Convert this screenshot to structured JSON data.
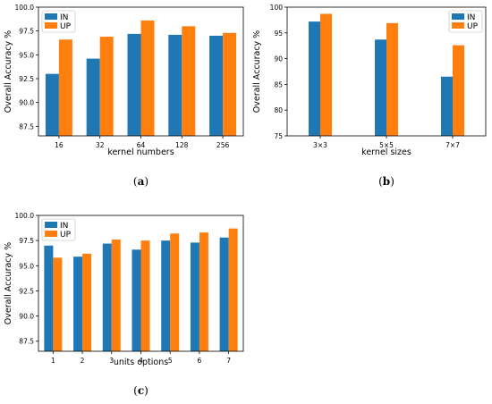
{
  "colors": {
    "series_IN": "#1f77b4",
    "series_UP": "#ff7f0e"
  },
  "chart_data": [
    {
      "id": "a",
      "type": "bar",
      "caption": "a",
      "xlabel": "kernel numbers",
      "ylabel": "Overall Accuracy %",
      "categories": [
        "16",
        "32",
        "64",
        "128",
        "256"
      ],
      "yticks": [
        "87.5",
        "90.0",
        "92.5",
        "95.0",
        "97.5",
        "100.0"
      ],
      "ytick_values": [
        87.5,
        90.0,
        92.5,
        95.0,
        97.5,
        100.0
      ],
      "ylim": [
        86.5,
        100.0
      ],
      "legend": "top-left",
      "series": [
        {
          "name": "IN",
          "values": [
            93.0,
            94.6,
            97.2,
            97.1,
            97.0
          ]
        },
        {
          "name": "UP",
          "values": [
            96.6,
            96.9,
            98.6,
            98.0,
            97.3
          ]
        }
      ]
    },
    {
      "id": "b",
      "type": "bar",
      "caption": "b",
      "xlabel": "kernel sizes",
      "ylabel": "Overall Accuracy %",
      "categories": [
        "3×3",
        "5×5",
        "7×7"
      ],
      "yticks": [
        "75",
        "80",
        "85",
        "90",
        "95",
        "100"
      ],
      "ytick_values": [
        75,
        80,
        85,
        90,
        95,
        100
      ],
      "ylim": [
        75,
        100
      ],
      "legend": "top-right",
      "series": [
        {
          "name": "IN",
          "values": [
            97.2,
            93.7,
            86.5
          ]
        },
        {
          "name": "UP",
          "values": [
            98.7,
            96.9,
            92.6
          ]
        }
      ]
    },
    {
      "id": "c",
      "type": "bar",
      "caption": "c",
      "xlabel": "units options",
      "ylabel": "Overall Accuracy %",
      "categories": [
        "1",
        "2",
        "3",
        "4",
        "5",
        "6",
        "7"
      ],
      "yticks": [
        "87.5",
        "90.0",
        "92.5",
        "95.0",
        "97.5",
        "100.0"
      ],
      "ytick_values": [
        87.5,
        90.0,
        92.5,
        95.0,
        97.5,
        100.0
      ],
      "ylim": [
        86.5,
        100.0
      ],
      "legend": "top-left",
      "series": [
        {
          "name": "IN",
          "values": [
            97.0,
            95.9,
            97.2,
            96.6,
            97.5,
            97.3,
            97.8
          ]
        },
        {
          "name": "UP",
          "values": [
            95.8,
            96.2,
            97.6,
            97.5,
            98.2,
            98.3,
            98.7
          ]
        }
      ]
    }
  ]
}
